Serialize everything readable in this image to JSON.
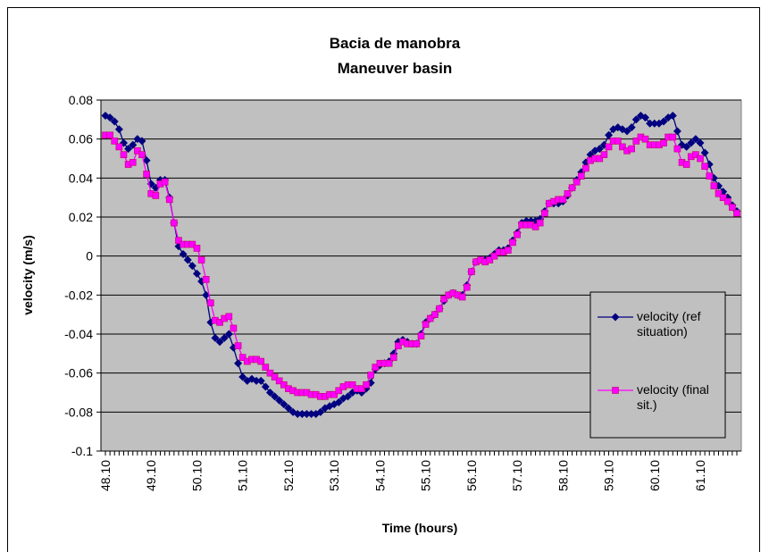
{
  "chart_data": {
    "type": "line",
    "title": "Bacia de manobra",
    "subtitle": "Maneuver basin",
    "x_label": "Time (hours)",
    "y_label": "velocity (m/s)",
    "categories": [
      "48.10",
      null,
      null,
      null,
      null,
      null,
      null,
      null,
      null,
      null,
      "49.10",
      null,
      null,
      null,
      null,
      null,
      null,
      null,
      null,
      null,
      "50.10",
      null,
      null,
      null,
      null,
      null,
      null,
      null,
      null,
      null,
      "51.10",
      null,
      null,
      null,
      null,
      null,
      null,
      null,
      null,
      null,
      "52.10",
      null,
      null,
      null,
      null,
      null,
      null,
      null,
      null,
      null,
      "53.10",
      null,
      null,
      null,
      null,
      null,
      null,
      null,
      null,
      null,
      "54.10",
      null,
      null,
      null,
      null,
      null,
      null,
      null,
      null,
      null,
      "55.10",
      null,
      null,
      null,
      null,
      null,
      null,
      null,
      null,
      null,
      "56.10",
      null,
      null,
      null,
      null,
      null,
      null,
      null,
      null,
      null,
      "57.10",
      null,
      null,
      null,
      null,
      null,
      null,
      null,
      null,
      null,
      "58.10",
      null,
      null,
      null,
      null,
      null,
      null,
      null,
      null,
      null,
      "59.10",
      null,
      null,
      null,
      null,
      null,
      null,
      null,
      null,
      null,
      "60.10",
      null,
      null,
      null,
      null,
      null,
      null,
      null,
      null,
      null,
      "61.10",
      null,
      null,
      null,
      null,
      null,
      null,
      null,
      null
    ],
    "series": [
      {
        "name": "velocity (ref situation)",
        "color": "#000080",
        "marker": "diamond",
        "values": [
          0.072,
          0.071,
          0.069,
          0.065,
          0.058,
          0.055,
          0.057,
          0.06,
          0.059,
          0.049,
          0.037,
          0.035,
          0.039,
          0.039,
          0.03,
          0.017,
          0.005,
          0.001,
          -0.002,
          -0.005,
          -0.009,
          -0.013,
          -0.02,
          -0.034,
          -0.042,
          -0.044,
          -0.042,
          -0.04,
          -0.047,
          -0.055,
          -0.062,
          -0.064,
          -0.063,
          -0.064,
          -0.064,
          -0.067,
          -0.07,
          -0.072,
          -0.074,
          -0.076,
          -0.078,
          -0.08,
          -0.081,
          -0.081,
          -0.081,
          -0.081,
          -0.081,
          -0.08,
          -0.078,
          -0.077,
          -0.076,
          -0.075,
          -0.073,
          -0.072,
          -0.07,
          -0.069,
          -0.07,
          -0.068,
          -0.065,
          -0.058,
          -0.056,
          -0.055,
          -0.054,
          -0.05,
          -0.044,
          -0.043,
          -0.044,
          -0.045,
          -0.045,
          -0.04,
          -0.034,
          -0.032,
          -0.03,
          -0.027,
          -0.023,
          -0.02,
          -0.019,
          -0.02,
          -0.02,
          -0.015,
          -0.008,
          -0.003,
          -0.002,
          -0.002,
          -0.001,
          0.001,
          0.003,
          0.003,
          0.004,
          0.008,
          0.012,
          0.017,
          0.018,
          0.018,
          0.018,
          0.019,
          0.023,
          0.027,
          0.027,
          0.027,
          0.028,
          0.031,
          0.035,
          0.039,
          0.043,
          0.048,
          0.052,
          0.054,
          0.055,
          0.057,
          0.062,
          0.065,
          0.066,
          0.065,
          0.064,
          0.066,
          0.07,
          0.072,
          0.071,
          0.068,
          0.068,
          0.068,
          0.069,
          0.071,
          0.072,
          0.064,
          0.057,
          0.056,
          0.058,
          0.06,
          0.058,
          0.053,
          0.047,
          0.04,
          0.036,
          0.033,
          0.03,
          0.026,
          0.023
        ]
      },
      {
        "name": "velocity (final sit.)",
        "color": "#ff00ff",
        "marker": "square",
        "values": [
          0.062,
          0.062,
          0.059,
          0.056,
          0.052,
          0.047,
          0.048,
          0.054,
          0.052,
          0.042,
          0.032,
          0.031,
          0.037,
          0.038,
          0.029,
          0.017,
          0.008,
          0.006,
          0.006,
          0.006,
          0.004,
          -0.002,
          -0.012,
          -0.024,
          -0.033,
          -0.034,
          -0.032,
          -0.031,
          -0.037,
          -0.046,
          -0.052,
          -0.054,
          -0.053,
          -0.053,
          -0.054,
          -0.057,
          -0.06,
          -0.062,
          -0.064,
          -0.066,
          -0.068,
          -0.069,
          -0.07,
          -0.07,
          -0.07,
          -0.071,
          -0.071,
          -0.072,
          -0.072,
          -0.071,
          -0.071,
          -0.069,
          -0.067,
          -0.066,
          -0.066,
          -0.068,
          -0.068,
          -0.066,
          -0.061,
          -0.057,
          -0.055,
          -0.055,
          -0.055,
          -0.052,
          -0.046,
          -0.044,
          -0.045,
          -0.045,
          -0.045,
          -0.041,
          -0.035,
          -0.032,
          -0.03,
          -0.027,
          -0.022,
          -0.02,
          -0.019,
          -0.02,
          -0.021,
          -0.016,
          -0.008,
          -0.003,
          -0.002,
          -0.003,
          -0.002,
          0.0,
          0.002,
          0.002,
          0.003,
          0.007,
          0.011,
          0.016,
          0.016,
          0.016,
          0.015,
          0.017,
          0.022,
          0.027,
          0.028,
          0.029,
          0.029,
          0.032,
          0.035,
          0.038,
          0.041,
          0.045,
          0.049,
          0.05,
          0.05,
          0.052,
          0.056,
          0.059,
          0.059,
          0.056,
          0.054,
          0.055,
          0.059,
          0.061,
          0.06,
          0.057,
          0.057,
          0.057,
          0.058,
          0.061,
          0.061,
          0.055,
          0.048,
          0.047,
          0.051,
          0.052,
          0.05,
          0.046,
          0.041,
          0.036,
          0.032,
          0.03,
          0.028,
          0.025,
          0.022
        ]
      }
    ],
    "ylim": [
      -0.1,
      0.08
    ],
    "yticks": [
      -0.1,
      -0.08,
      -0.06,
      -0.04,
      -0.02,
      0,
      0.02,
      0.04,
      0.06,
      0.08
    ],
    "grid": true,
    "plot_background": "#c0c0c0"
  }
}
